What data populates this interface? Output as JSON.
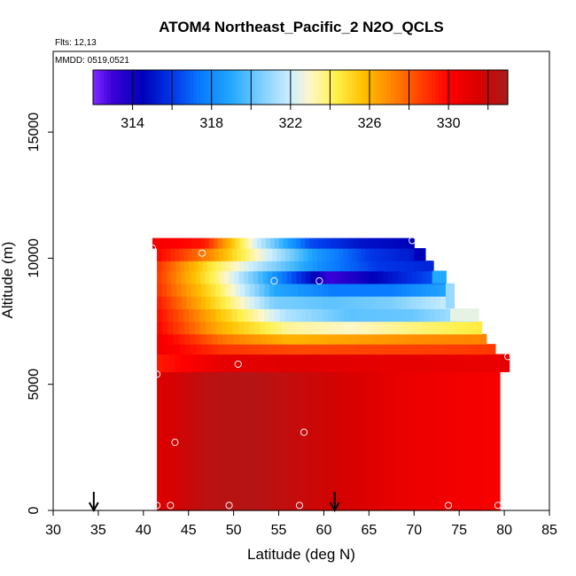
{
  "chart_data": {
    "type": "heatmap",
    "title": "ATOM4 Northeast_Pacific_2 N2O_QCLS",
    "flights_label": "Flts: 12,13",
    "mmdd_label": "MMDD: 0519,0521",
    "xlabel": "Latitude (deg N)",
    "ylabel": "Altitude (m)",
    "xlim": [
      30,
      85
    ],
    "ylim": [
      0,
      18200
    ],
    "xticks": [
      "30",
      "35",
      "40",
      "45",
      "50",
      "55",
      "60",
      "65",
      "70",
      "75",
      "80",
      "85"
    ],
    "yticks": [
      "0",
      "5000",
      "10000",
      "15000"
    ],
    "colorbar": {
      "range": [
        312,
        333
      ],
      "tick_values": [
        314,
        318,
        322,
        326,
        330
      ],
      "tick_labels": [
        "314",
        "318",
        "322",
        "326",
        "330"
      ],
      "bin_boundaries": [
        314,
        316,
        318,
        320,
        322,
        324,
        326,
        328,
        330,
        332
      ],
      "stops": [
        {
          "v": 312,
          "c": "#7f2aff"
        },
        {
          "v": 313,
          "c": "#3a00d8"
        },
        {
          "v": 314.5,
          "c": "#0000b8"
        },
        {
          "v": 316,
          "c": "#0036e8"
        },
        {
          "v": 317.5,
          "c": "#0a7cff"
        },
        {
          "v": 319,
          "c": "#22a8ff"
        },
        {
          "v": 320.5,
          "c": "#7ccfff"
        },
        {
          "v": 322,
          "c": "#cdeeff"
        },
        {
          "v": 323,
          "c": "#fff7c8"
        },
        {
          "v": 324.3,
          "c": "#fff04a"
        },
        {
          "v": 325.7,
          "c": "#ffc000"
        },
        {
          "v": 327,
          "c": "#ff8c00"
        },
        {
          "v": 328.5,
          "c": "#ff4400"
        },
        {
          "v": 330,
          "c": "#ff0000"
        },
        {
          "v": 331.5,
          "c": "#d80000"
        },
        {
          "v": 333,
          "c": "#a81c1c"
        }
      ]
    },
    "curtain_rows": [
      {
        "alt_bottom": 0,
        "alt_top": 5500,
        "lat_left": 41.5,
        "lat_right": 79.5,
        "values": [
          331.2,
          332.4,
          332.6,
          332.0,
          331.5,
          330.8,
          330.5,
          330.3
        ]
      },
      {
        "alt_bottom": 5500,
        "alt_top": 6200,
        "lat_left": 41.5,
        "lat_right": 80.5,
        "values": [
          329.4,
          331.0,
          331.2,
          331.0,
          330.9,
          330.8
        ]
      },
      {
        "alt_bottom": 6200,
        "alt_top": 6600,
        "lat_left": 41.5,
        "lat_right": 79.0,
        "values": [
          330.5,
          328.8,
          328.4,
          328.5,
          328.6,
          328.8
        ]
      },
      {
        "alt_bottom": 6600,
        "alt_top": 7000,
        "lat_left": 41.5,
        "lat_right": 78.0,
        "values": [
          330.5,
          327.5,
          326.0,
          326.5,
          327.0,
          327.2
        ]
      },
      {
        "alt_bottom": 7000,
        "alt_top": 7500,
        "lat_left": 41.5,
        "lat_right": 77.5,
        "values": [
          330.0,
          326.0,
          323.5,
          323.0,
          323.8,
          324.5
        ]
      },
      {
        "alt_bottom": 7500,
        "alt_top": 8000,
        "lat_left": 41.5,
        "lat_right": 77.0,
        "values": [
          329.8,
          325.5,
          321.5,
          320.0,
          320.2,
          321.8
        ]
      },
      {
        "alt_bottom": 8000,
        "alt_top": 8500,
        "lat_left": 41.5,
        "lat_right": 74.0,
        "values": [
          329.5,
          325.0,
          320.5,
          320.0,
          320.5,
          322.0
        ]
      },
      {
        "alt_bottom": 8500,
        "alt_top": 9000,
        "lat_left": 41.5,
        "lat_right": 74.0,
        "values": [
          329.0,
          324.5,
          319.0,
          317.5,
          317.5,
          319.0
        ]
      },
      {
        "alt_bottom": 9000,
        "alt_top": 9500,
        "lat_left": 41.5,
        "lat_right": 73.5,
        "values": [
          328.8,
          324.0,
          318.5,
          313.0,
          315.0,
          317.0
        ]
      },
      {
        "alt_bottom": 9500,
        "alt_top": 9900,
        "lat_left": 41.5,
        "lat_right": 72.0,
        "values": [
          329.0,
          324.5,
          321.0,
          318.0,
          316.0,
          315.5
        ]
      },
      {
        "alt_bottom": 9900,
        "alt_top": 10400,
        "lat_left": 41.5,
        "lat_right": 71.0,
        "values": [
          330.0,
          327.0,
          322.5,
          318.5,
          316.0,
          315.0
        ]
      },
      {
        "alt_bottom": 10400,
        "alt_top": 10800,
        "lat_left": 41.0,
        "lat_right": 70.0,
        "values": [
          330.5,
          329.5,
          322.0,
          316.5,
          315.0,
          314.5
        ]
      }
    ],
    "curtain_steps": [
      {
        "alt_bottom": 9900,
        "alt_top": 10400,
        "lat_left": 70.0,
        "lat_right": 71.3,
        "value": 314.5
      },
      {
        "alt_bottom": 9500,
        "alt_top": 9900,
        "lat_left": 71.0,
        "lat_right": 72.2,
        "value": 315.5
      },
      {
        "alt_bottom": 9000,
        "alt_top": 9500,
        "lat_left": 72.0,
        "lat_right": 73.6,
        "value": 319.0
      },
      {
        "alt_bottom": 8000,
        "alt_top": 9000,
        "lat_left": 73.5,
        "lat_right": 74.5,
        "value": 321.0
      },
      {
        "alt_bottom": 7500,
        "alt_top": 8000,
        "lat_left": 74.0,
        "lat_right": 77.2,
        "value": 322.5
      },
      {
        "alt_bottom": 5500,
        "alt_top": 6100,
        "lat_left": 79.5,
        "lat_right": 80.6,
        "value": 331.0
      }
    ],
    "samples": [
      {
        "lat": 41.5,
        "alt": 200
      },
      {
        "lat": 43.0,
        "alt": 200
      },
      {
        "lat": 49.5,
        "alt": 200
      },
      {
        "lat": 57.3,
        "alt": 200
      },
      {
        "lat": 73.8,
        "alt": 200
      },
      {
        "lat": 79.3,
        "alt": 200
      },
      {
        "lat": 43.5,
        "alt": 2700
      },
      {
        "lat": 57.8,
        "alt": 3100
      },
      {
        "lat": 41.5,
        "alt": 5400
      },
      {
        "lat": 50.5,
        "alt": 5800
      },
      {
        "lat": 80.4,
        "alt": 6100
      },
      {
        "lat": 54.5,
        "alt": 9100
      },
      {
        "lat": 59.5,
        "alt": 9100
      },
      {
        "lat": 46.5,
        "alt": 10200
      },
      {
        "lat": 41.0,
        "alt": 10400
      },
      {
        "lat": 69.8,
        "alt": 10700
      }
    ],
    "arrows_lat": [
      34.5,
      61.2
    ],
    "grid": false,
    "legend": "colorbar top inside plot"
  }
}
